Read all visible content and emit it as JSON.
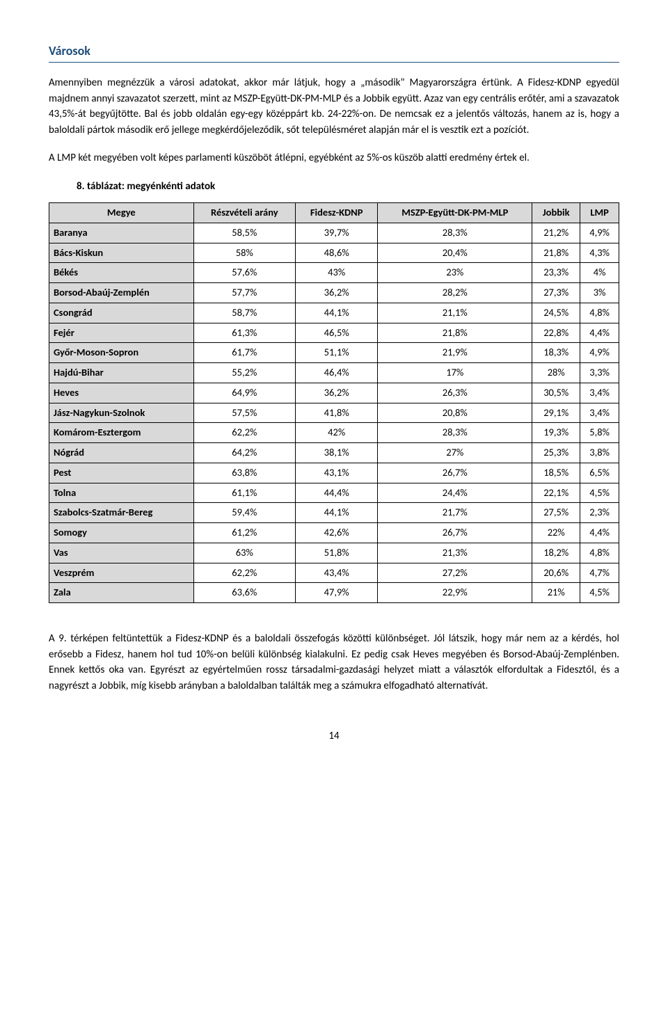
{
  "section_title": "Városok",
  "paragraphs": {
    "p1": "Amennyiben megnézzük a városi adatokat, akkor már látjuk, hogy a „második\" Magyarországra értünk. A Fidesz-KDNP egyedül majdnem annyi szavazatot szerzett, mint az MSZP-Együtt-DK-PM-MLP és a Jobbik együtt. Azaz van egy centrális erőtér, ami a szavazatok 43,5%-át begyűjtötte. Bal és jobb oldalán egy-egy középpárt kb. 24-22%-on. De nemcsak ez a jelentős változás, hanem az is, hogy a baloldali pártok második erő jellege megkérdőjeleződik, sőt településméret alapján már el is vesztik ezt a pozíciót.",
    "p2": "A LMP két megyében volt képes parlamenti küszöböt átlépni, egyébként az 5%-os küszöb alatti eredmény értek el.",
    "p3": "A 9. térképen feltüntettük a Fidesz-KDNP és a baloldali összefogás közötti különbséget. Jól látszik, hogy már nem az a kérdés, hol erősebb a Fidesz, hanem hol tud 10%-on belüli különbség kialakulni. Ez pedig csak Heves megyében és Borsod-Abaúj-Zemplénben. Ennek kettős oka van. Egyrészt az egyértelműen rossz társadalmi-gazdasági helyzet miatt a választók elfordultak a Fidesztől, és a nagyrészt a Jobbik, míg kisebb arányban a baloldalban találták meg a számukra elfogadható alternatívát."
  },
  "table_caption": "8. táblázat: megyénkénti adatok",
  "table": {
    "columns": [
      "Megye",
      "Részvételi arány",
      "Fidesz-KDNP",
      "MSZP-Együtt-DK-PM-MLP",
      "Jobbik",
      "LMP"
    ],
    "rows": [
      [
        "Baranya",
        "58,5%",
        "39,7%",
        "28,3%",
        "21,2%",
        "4,9%"
      ],
      [
        "Bács-Kiskun",
        "58%",
        "48,6%",
        "20,4%",
        "21,8%",
        "4,3%"
      ],
      [
        "Békés",
        "57,6%",
        "43%",
        "23%",
        "23,3%",
        "4%"
      ],
      [
        "Borsod-Abaúj-Zemplén",
        "57,7%",
        "36,2%",
        "28,2%",
        "27,3%",
        "3%"
      ],
      [
        "Csongrád",
        "58,7%",
        "44,1%",
        "21,1%",
        "24,5%",
        "4,8%"
      ],
      [
        "Fejér",
        "61,3%",
        "46,5%",
        "21,8%",
        "22,8%",
        "4,4%"
      ],
      [
        "Győr-Moson-Sopron",
        "61,7%",
        "51,1%",
        "21,9%",
        "18,3%",
        "4,9%"
      ],
      [
        "Hajdú-Bihar",
        "55,2%",
        "46,4%",
        "17%",
        "28%",
        "3,3%"
      ],
      [
        "Heves",
        "64,9%",
        "36,2%",
        "26,3%",
        "30,5%",
        "3,4%"
      ],
      [
        "Jász-Nagykun-Szolnok",
        "57,5%",
        "41,8%",
        "20,8%",
        "29,1%",
        "3,4%"
      ],
      [
        "Komárom-Esztergom",
        "62,2%",
        "42%",
        "28,3%",
        "19,3%",
        "5,8%"
      ],
      [
        "Nógrád",
        "64,2%",
        "38,1%",
        "27%",
        "25,3%",
        "3,8%"
      ],
      [
        "Pest",
        "63,8%",
        "43,1%",
        "26,7%",
        "18,5%",
        "6,5%"
      ],
      [
        "Tolna",
        "61,1%",
        "44,4%",
        "24,4%",
        "22,1%",
        "4,5%"
      ],
      [
        "Szabolcs-Szatmár-Bereg",
        "59,4%",
        "44,1%",
        "21,7%",
        "27,5%",
        "2,3%"
      ],
      [
        "Somogy",
        "61,2%",
        "42,6%",
        "26,7%",
        "22%",
        "4,4%"
      ],
      [
        "Vas",
        "63%",
        "51,8%",
        "21,3%",
        "18,2%",
        "4,8%"
      ],
      [
        "Veszprém",
        "62,2%",
        "43,4%",
        "27,2%",
        "20,6%",
        "4,7%"
      ],
      [
        "Zala",
        "63,6%",
        "47,9%",
        "22,9%",
        "21%",
        "4,5%"
      ]
    ]
  },
  "page_number": "14"
}
